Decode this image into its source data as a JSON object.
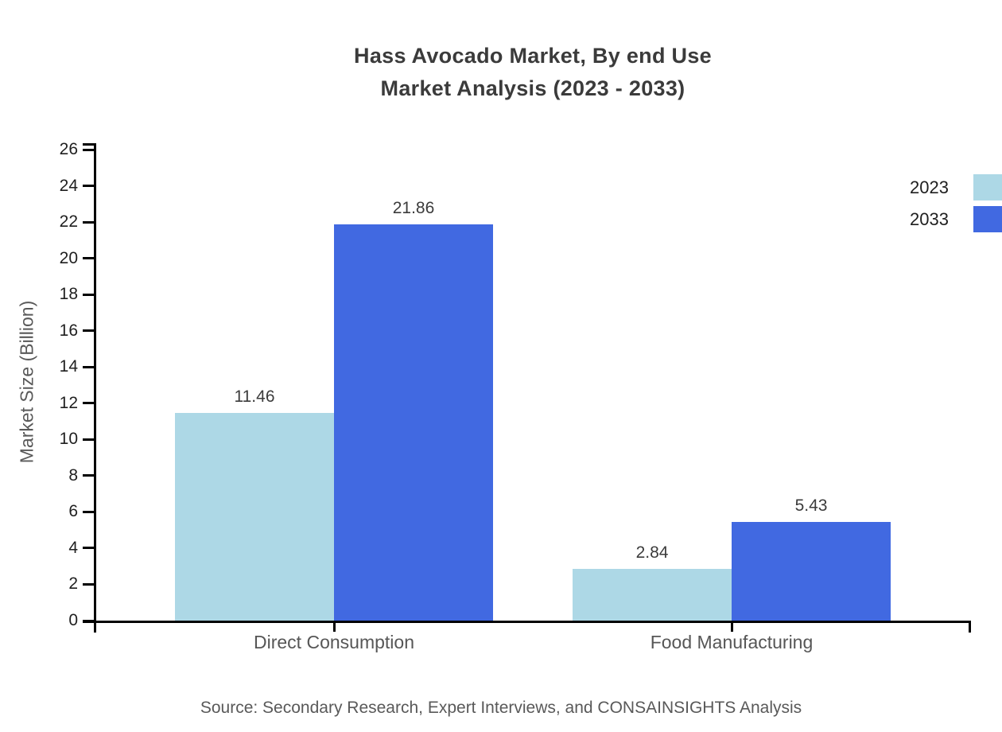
{
  "title": {
    "line1": "Hass Avocado Market, By end Use",
    "line2": "Market Analysis (2023 - 2033)"
  },
  "source": "Source: Secondary Research, Expert Interviews, and CONSAINSIGHTS Analysis",
  "chart_data": {
    "type": "bar",
    "title": "Hass Avocado Market, By end Use Market Analysis (2023 - 2033)",
    "categories": [
      "Direct Consumption",
      "Food Manufacturing"
    ],
    "series": [
      {
        "name": "2023",
        "color": "#ADD8E6",
        "values": [
          11.46,
          2.84
        ]
      },
      {
        "name": "2033",
        "color": "#4169E1",
        "values": [
          21.86,
          5.43
        ]
      }
    ],
    "xlabel": "",
    "ylabel": "Market Size (Billion)",
    "ylim": [
      0,
      26
    ],
    "ytick_step": 2,
    "grid": false,
    "legend_position": "top-right",
    "value_labels": true,
    "axis_color": "#000000",
    "colors": {
      "title_text": "#3b3b3b",
      "tick_text": "#1f1f1f",
      "category_text": "#565656",
      "muted_text": "#595959"
    }
  },
  "legend": {
    "items": [
      {
        "label": "2023",
        "color": "#ADD8E6"
      },
      {
        "label": "2033",
        "color": "#4169E1"
      }
    ]
  }
}
